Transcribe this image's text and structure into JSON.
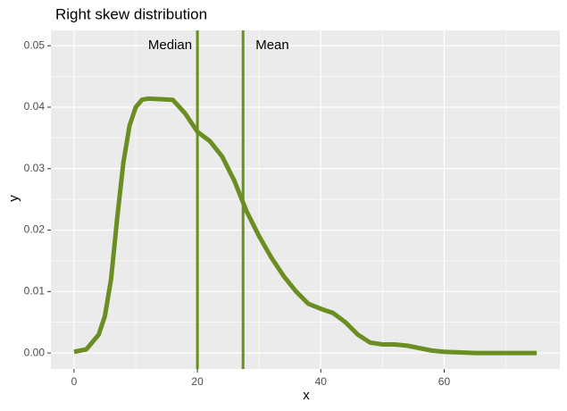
{
  "chart_data": {
    "type": "line",
    "title": "Right skew distribution",
    "x_label": "x",
    "y_label": "y",
    "x": [
      0,
      2,
      4,
      5,
      6,
      7,
      8,
      9,
      10,
      11,
      12,
      14,
      16,
      18,
      20,
      22,
      24,
      26,
      28,
      30,
      32,
      34,
      36,
      38,
      40,
      42,
      44,
      46,
      48,
      50,
      52,
      54,
      56,
      58,
      60,
      65,
      70,
      75
    ],
    "values": [
      0.0002,
      0.0006,
      0.003,
      0.006,
      0.012,
      0.022,
      0.031,
      0.037,
      0.04,
      0.0412,
      0.0414,
      0.0413,
      0.0412,
      0.039,
      0.036,
      0.0345,
      0.032,
      0.028,
      0.023,
      0.019,
      0.0155,
      0.0125,
      0.01,
      0.008,
      0.0072,
      0.0065,
      0.005,
      0.003,
      0.0017,
      0.0014,
      0.0014,
      0.0012,
      0.0008,
      0.0004,
      0.0002,
      0,
      0,
      0
    ],
    "color": "#6b8e23",
    "vlines": [
      {
        "label": "Median",
        "value": 20
      },
      {
        "label": "Mean",
        "value": 27.4
      }
    ],
    "xlim": [
      -3.75,
      78.75
    ],
    "xticks": [
      0,
      20,
      40,
      60
    ],
    "xminor": [
      10,
      30,
      50,
      70
    ],
    "ylim": [
      -0.0026,
      0.0525
    ],
    "yticks": [
      {
        "value": 0,
        "label": "0.00"
      },
      {
        "value": 0.01,
        "label": "0.01"
      },
      {
        "value": 0.02,
        "label": "0.02"
      },
      {
        "value": 0.03,
        "label": "0.03"
      },
      {
        "value": 0.04,
        "label": "0.04"
      },
      {
        "value": 0.05,
        "label": "0.05"
      }
    ],
    "yminor": [
      0.005,
      0.015,
      0.025,
      0.035,
      0.045
    ],
    "grid": true
  }
}
